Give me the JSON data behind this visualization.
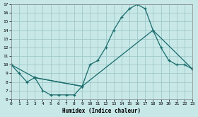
{
  "xlabel": "Humidex (Indice chaleur)",
  "bg_color": "#c8e8e8",
  "grid_color": "#a0c8c8",
  "line_color": "#1a6b6b",
  "xlim": [
    0,
    23
  ],
  "ylim": [
    6,
    17
  ],
  "xticks": [
    0,
    1,
    2,
    3,
    4,
    5,
    6,
    7,
    8,
    9,
    10,
    11,
    12,
    13,
    14,
    15,
    16,
    17,
    18,
    19,
    20,
    21,
    22,
    23
  ],
  "yticks": [
    6,
    7,
    8,
    9,
    10,
    11,
    12,
    13,
    14,
    15,
    16,
    17
  ],
  "line1_x": [
    0,
    1,
    2,
    3,
    9,
    10,
    11,
    12,
    13,
    14,
    15,
    16,
    17,
    18,
    19,
    20,
    21,
    22,
    23
  ],
  "line1_y": [
    10.0,
    9.0,
    8.0,
    8.5,
    7.5,
    10.0,
    10.5,
    12.0,
    14.0,
    15.5,
    16.5,
    17.0,
    16.5,
    14.0,
    12.0,
    10.5,
    10.0,
    10.0,
    9.5
  ],
  "line2_x": [
    0,
    3,
    9,
    18,
    23
  ],
  "line2_y": [
    10.0,
    8.5,
    7.5,
    14.0,
    9.5
  ],
  "line3_x": [
    3,
    4,
    5,
    6,
    7,
    8,
    9
  ],
  "line3_y": [
    8.5,
    7.0,
    6.5,
    6.5,
    6.5,
    6.5,
    7.5
  ]
}
